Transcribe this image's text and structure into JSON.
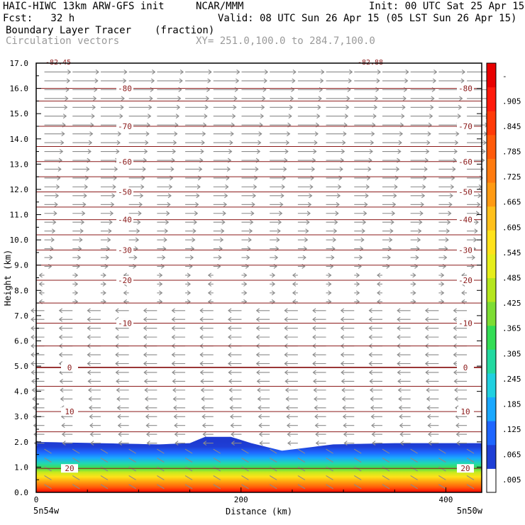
{
  "header": {
    "model": "HAIC-HIWC 13km ARW-GFS init",
    "org": "NCAR/MMM",
    "init": "Init: 00 UTC Sat 25 Apr 15",
    "fcst": "Fcst:   32 h",
    "valid": "Valid: 08 UTC Sun 26 Apr 15 (05 LST Sun 26 Apr 15)",
    "field": "Boundary Layer Tracer",
    "units": "(fraction)",
    "vectors": "Circulation vectors",
    "xy": "XY= 251.0,100.0 to 284.7,100.0"
  },
  "chart_data": {
    "type": "heatmap",
    "ylabel": "Height (km)",
    "xlabel": "Distance (km)",
    "xlim": [
      0,
      435
    ],
    "ylim": [
      0,
      17
    ],
    "y_ticks": [
      "0.0",
      "1.0",
      "2.0",
      "3.0",
      "4.0",
      "5.0",
      "6.0",
      "7.0",
      "8.0",
      "9.0",
      "10.0",
      "11.0",
      "12.0",
      "13.0",
      "14.0",
      "15.0",
      "16.0",
      "17.0"
    ],
    "x_ticks": [
      "0",
      "200",
      "400"
    ],
    "x_tick_values": [
      0,
      200,
      400
    ],
    "x_end_labels": {
      "left": "5n54w",
      "right": "5n50w"
    },
    "colorbar": {
      "labels": [
        ".005",
        ".065",
        ".125",
        ".185",
        ".245",
        ".305",
        ".365",
        ".425",
        ".485",
        ".545",
        ".605",
        ".665",
        ".725",
        ".785",
        ".845",
        ".905",
        "-"
      ],
      "colors": [
        "#ffffff",
        "#1f3fd6",
        "#1f66ff",
        "#1aa8ff",
        "#20d0e0",
        "#22d9a0",
        "#33dd55",
        "#7ddd33",
        "#b5e61d",
        "#e6ee1a",
        "#ffe21a",
        "#ffc01a",
        "#ff9a12",
        "#ff7a0e",
        "#ff5a0a",
        "#ff3a08",
        "#ff1a0c",
        "#e80000"
      ]
    },
    "tracer_top_profile": [
      [
        0,
        2.0
      ],
      [
        60,
        1.95
      ],
      [
        120,
        1.9
      ],
      [
        150,
        1.95
      ],
      [
        165,
        2.2
      ],
      [
        190,
        2.2
      ],
      [
        210,
        1.95
      ],
      [
        240,
        1.65
      ],
      [
        290,
        1.9
      ],
      [
        350,
        1.95
      ],
      [
        435,
        1.95
      ]
    ],
    "temperature_contours": [
      {
        "label": "-80",
        "height": 16.0
      },
      {
        "label": "-70",
        "height": 14.5
      },
      {
        "label": "-60",
        "height": 13.1
      },
      {
        "label": "-50",
        "height": 11.9
      },
      {
        "label": "-40",
        "height": 10.8
      },
      {
        "label": "-30",
        "height": 9.6
      },
      {
        "label": "-20",
        "height": 8.4
      },
      {
        "label": "-10",
        "height": 6.7
      },
      {
        "label": "0",
        "height": 4.95
      },
      {
        "label": "10",
        "height": 3.2
      },
      {
        "label": "20",
        "height": 0.95
      }
    ],
    "top_labels": [
      "-82.45",
      "-82.88"
    ],
    "grid": false
  }
}
